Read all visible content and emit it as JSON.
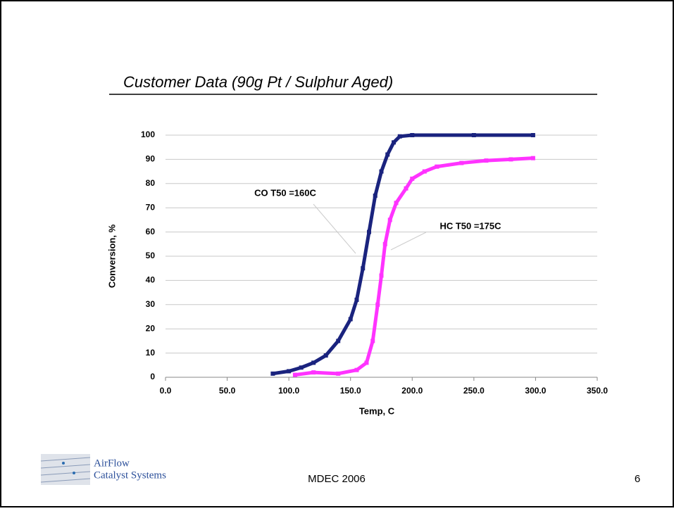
{
  "chart_data": {
    "type": "scatter",
    "title": "Customer Data (90g Pt / Sulphur Aged)",
    "x_label": "Temp, C",
    "y_label": "Conversion, %",
    "annotations": [
      "CO T50 =160C",
      "HC T50 =175C"
    ],
    "footer": "MDEC 2006",
    "page_number": "6",
    "logo": [
      "AirFlow",
      "Catalyst Systems"
    ],
    "xlim": [
      0,
      350
    ],
    "ylim": [
      0,
      100
    ],
    "xticks": [
      {
        "value": 0,
        "label": "0.0"
      },
      {
        "value": 50,
        "label": "50.0"
      },
      {
        "value": 100,
        "label": "100.0"
      },
      {
        "value": 150,
        "label": "150.0"
      },
      {
        "value": 200,
        "label": "200.0"
      },
      {
        "value": 250,
        "label": "250.0"
      },
      {
        "value": 300,
        "label": "300.0"
      },
      {
        "value": 350,
        "label": "350.0"
      }
    ],
    "yticks": [
      0,
      10,
      20,
      30,
      40,
      50,
      60,
      70,
      80,
      90,
      100
    ],
    "grid": true,
    "series": [
      {
        "name": "CO",
        "color": "#1a237e",
        "x": [
          87,
          100,
          110,
          120,
          130,
          140,
          150,
          155,
          160,
          165,
          170,
          175,
          180,
          185,
          190,
          200,
          250,
          298
        ],
        "values": [
          1.5,
          2.5,
          4,
          6,
          9,
          15,
          24,
          32,
          45,
          60,
          75,
          85,
          92,
          97,
          99.5,
          100,
          100,
          100
        ]
      },
      {
        "name": "HC",
        "color": "#ff33ff",
        "x": [
          105,
          120,
          140,
          155,
          163,
          168,
          172,
          175,
          178,
          182,
          187,
          195,
          200,
          210,
          220,
          240,
          260,
          280,
          298
        ],
        "values": [
          1,
          2,
          1.5,
          3,
          6,
          15,
          30,
          42,
          55,
          65,
          72,
          78,
          82,
          85,
          87,
          88.5,
          89.5,
          90,
          90.5
        ]
      }
    ]
  }
}
